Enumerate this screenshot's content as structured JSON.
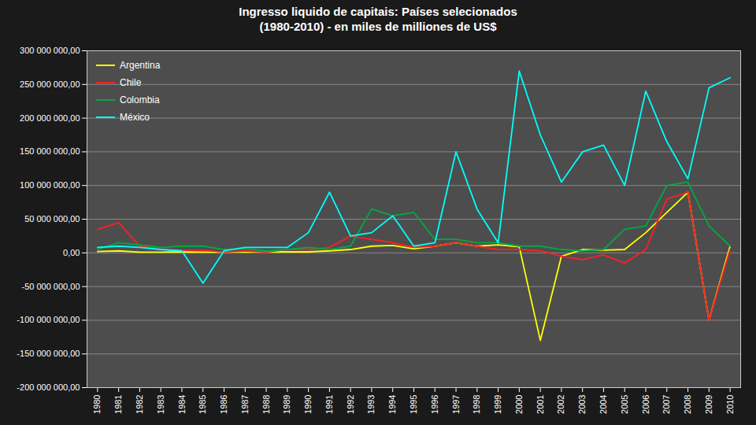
{
  "chart_data": {
    "type": "line",
    "title": "Ingresso liquido de capitais: Países selecionados\n(1980-2010) - en miles de milliones de US$",
    "x": [
      1980,
      1981,
      1982,
      1983,
      1984,
      1985,
      1986,
      1987,
      1988,
      1989,
      1990,
      1991,
      1992,
      1993,
      1994,
      1995,
      1996,
      1997,
      1998,
      1999,
      2000,
      2001,
      2002,
      2003,
      2004,
      2005,
      2006,
      2007,
      2008,
      2009,
      2010
    ],
    "series": [
      {
        "name": "Argentina",
        "color": "#ffff00",
        "values": [
          2000000,
          3000000,
          1000000,
          1000000,
          1500000,
          1000000,
          1000000,
          1500000,
          1500000,
          1500000,
          1500000,
          3000000,
          5000000,
          10000000,
          11000000,
          6000000,
          10000000,
          15000000,
          10000000,
          12000000,
          9000000,
          -130000000,
          -5000000,
          5000000,
          4000000,
          5000000,
          30000000,
          60000000,
          90000000,
          -100000000,
          10000000
        ]
      },
      {
        "name": "Chile",
        "color": "#ff2020",
        "values": [
          35000000,
          45000000,
          10000000,
          5000000,
          4000000,
          4000000,
          1000000,
          3000000,
          1000000,
          5000000,
          5000000,
          8000000,
          25000000,
          20000000,
          15000000,
          8000000,
          10000000,
          15000000,
          10000000,
          5000000,
          5000000,
          3000000,
          -5000000,
          -10000000,
          -3000000,
          -15000000,
          5000000,
          80000000,
          90000000,
          -100000000,
          5000000
        ]
      },
      {
        "name": "Colombia",
        "color": "#00aa44",
        "values": [
          5000000,
          15000000,
          12000000,
          8000000,
          10000000,
          10000000,
          5000000,
          6000000,
          3000000,
          5000000,
          8000000,
          5000000,
          10000000,
          65000000,
          55000000,
          60000000,
          20000000,
          20000000,
          15000000,
          15000000,
          10000000,
          10000000,
          5000000,
          3000000,
          5000000,
          35000000,
          40000000,
          100000000,
          105000000,
          40000000,
          10000000
        ]
      },
      {
        "name": "México",
        "color": "#00ffff",
        "values": [
          8000000,
          10000000,
          8000000,
          5000000,
          3000000,
          -45000000,
          3000000,
          8000000,
          8000000,
          8000000,
          30000000,
          90000000,
          25000000,
          30000000,
          55000000,
          10000000,
          15000000,
          150000000,
          65000000,
          15000000,
          270000000,
          175000000,
          105000000,
          150000000,
          160000000,
          100000000,
          240000000,
          165000000,
          110000000,
          245000000,
          260000000
        ]
      }
    ],
    "xlim": [
      1979.5,
      2010.5
    ],
    "xticks": [
      1980,
      1981,
      1982,
      1983,
      1984,
      1985,
      1986,
      1987,
      1988,
      1989,
      1990,
      1991,
      1992,
      1993,
      1994,
      1995,
      1996,
      1997,
      1998,
      1999,
      2000,
      2001,
      2002,
      2003,
      2004,
      2005,
      2006,
      2007,
      2008,
      2009,
      2010
    ],
    "ylim": [
      -200000000,
      300000000
    ],
    "yticks": [
      {
        "value": -200000000,
        "label": "-200 000 000,00"
      },
      {
        "value": -150000000,
        "label": "-150 000 000,00"
      },
      {
        "value": -100000000,
        "label": "-100 000 000,00"
      },
      {
        "value": -50000000,
        "label": "-50 000 000,00"
      },
      {
        "value": 0,
        "label": "0,00"
      },
      {
        "value": 50000000,
        "label": "50 000 000,00"
      },
      {
        "value": 100000000,
        "label": "100 000 000,00"
      },
      {
        "value": 150000000,
        "label": "150 000 000,00"
      },
      {
        "value": 200000000,
        "label": "200 000 000,00"
      },
      {
        "value": 250000000,
        "label": "250 000 000,00"
      },
      {
        "value": 300000000,
        "label": "300 000 000,00"
      }
    ],
    "grid": true,
    "legend": "upper left"
  }
}
